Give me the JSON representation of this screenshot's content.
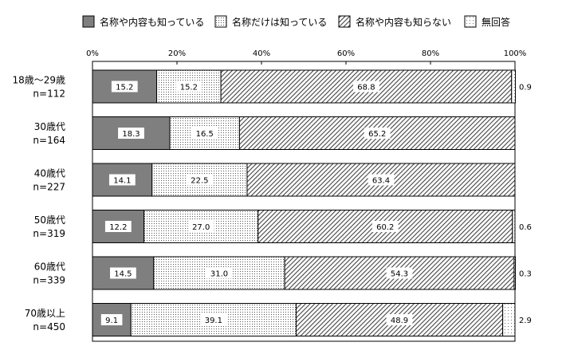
{
  "chart_data": {
    "type": "bar",
    "orientation": "horizontal",
    "stacked": true,
    "categories": [
      "18歳～29歳",
      "30歳代",
      "40歳代",
      "50歳代",
      "60歳代",
      "70歳以上"
    ],
    "sample_sizes": [
      "n=112",
      "n=164",
      "n=227",
      "n=319",
      "n=339",
      "n=450"
    ],
    "series": [
      {
        "name": "名称や内容も知っている",
        "values": [
          15.2,
          18.3,
          14.1,
          12.2,
          14.5,
          9.1
        ],
        "labels": [
          "15.2",
          "18.3",
          "14.1",
          "12.2",
          "14.5",
          "9.1"
        ],
        "fill": "#7f7f7f"
      },
      {
        "name": "名称だけは知っている",
        "values": [
          15.2,
          16.5,
          22.5,
          27.0,
          31.0,
          39.1
        ],
        "labels": [
          "15.2",
          "16.5",
          "22.5",
          "27.0",
          "31.0",
          "39.1"
        ],
        "fill": "dots-dense"
      },
      {
        "name": "名称や内容も知らない",
        "values": [
          68.8,
          65.2,
          63.4,
          60.2,
          54.3,
          48.9
        ],
        "labels": [
          "68.8",
          "65.2",
          "63.4",
          "60.2",
          "54.3",
          "48.9"
        ],
        "fill": "diagonal-hatch"
      },
      {
        "name": "無回答",
        "values": [
          0.9,
          0.0,
          0.0,
          0.6,
          0.3,
          2.9
        ],
        "labels": [
          "0.9",
          "",
          "",
          "0.6",
          "0.3",
          "2.9"
        ],
        "fill": "dots-sparse"
      }
    ],
    "xlim": [
      0,
      100
    ],
    "xticks": [
      "0%",
      "20%",
      "40%",
      "60%",
      "80%",
      "100%"
    ],
    "legend_position": "top",
    "grid": false
  }
}
